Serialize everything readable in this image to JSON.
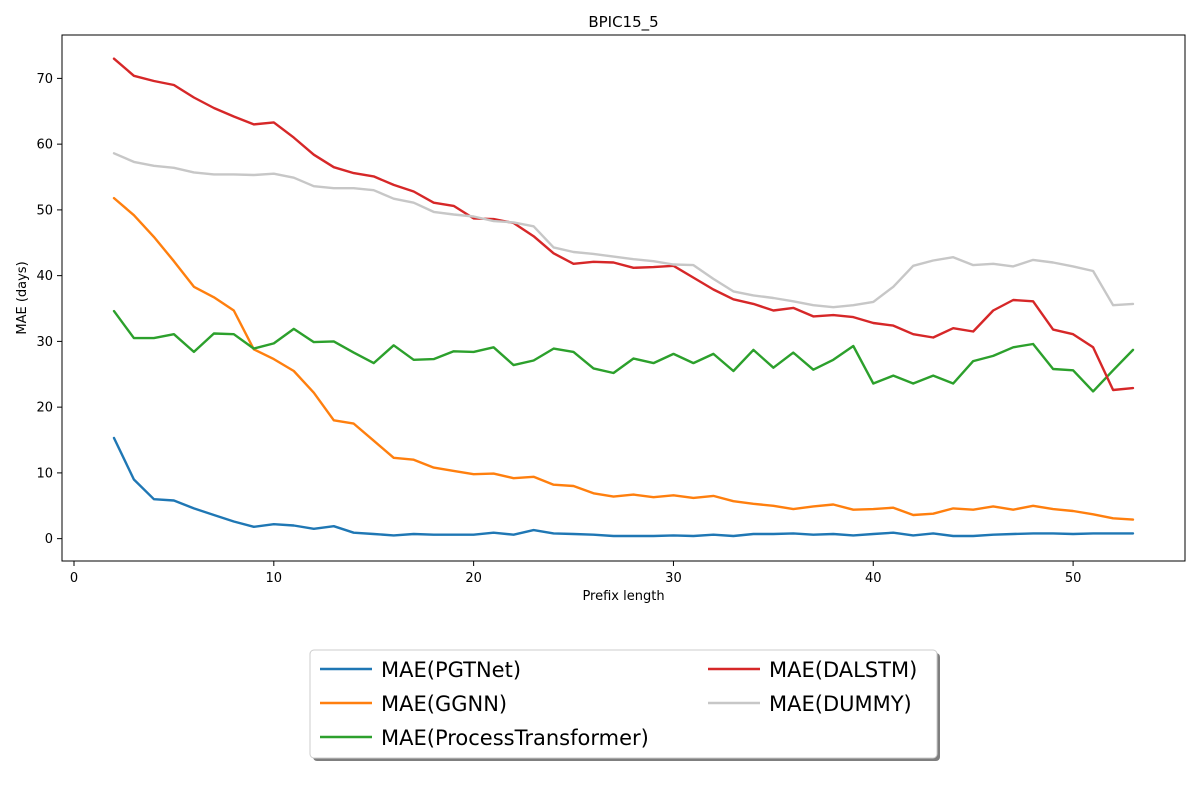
{
  "chart_data": {
    "type": "line",
    "title": "BPIC15_5",
    "xlabel": "Prefix length",
    "ylabel": "MAE (days)",
    "xlim": [
      -0.6,
      55.6
    ],
    "ylim": [
      -3.4,
      76.6
    ],
    "xticks": [
      0,
      10,
      20,
      30,
      40,
      50
    ],
    "yticks": [
      0,
      10,
      20,
      30,
      40,
      50,
      60,
      70
    ],
    "grid": false,
    "legend_position": "bottom-center",
    "x": [
      2,
      3,
      4,
      5,
      6,
      7,
      8,
      9,
      10,
      11,
      12,
      13,
      14,
      15,
      16,
      17,
      18,
      19,
      20,
      21,
      22,
      23,
      24,
      25,
      26,
      27,
      28,
      29,
      30,
      31,
      32,
      33,
      34,
      35,
      36,
      37,
      38,
      39,
      40,
      41,
      42,
      43,
      44,
      45,
      46,
      47,
      48,
      49,
      50,
      51,
      52,
      53
    ],
    "series": [
      {
        "name": "MAE(PGTNet)",
        "color": "#1f77b4",
        "values": [
          15.3,
          9.0,
          6.0,
          5.8,
          4.6,
          3.6,
          2.6,
          1.8,
          2.2,
          2.0,
          1.5,
          1.9,
          0.9,
          0.7,
          0.5,
          0.7,
          0.6,
          0.6,
          0.6,
          0.9,
          0.6,
          1.3,
          0.8,
          0.7,
          0.6,
          0.4,
          0.4,
          0.4,
          0.5,
          0.4,
          0.6,
          0.4,
          0.7,
          0.7,
          0.8,
          0.6,
          0.7,
          0.5,
          0.7,
          0.9,
          0.5,
          0.8,
          0.4,
          0.4,
          0.6,
          0.7,
          0.8,
          0.8,
          0.7,
          0.8,
          0.8,
          0.8
        ]
      },
      {
        "name": "MAE(GGNN)",
        "color": "#ff7f0e",
        "values": [
          51.8,
          49.2,
          45.9,
          42.2,
          38.3,
          36.7,
          34.7,
          28.8,
          27.3,
          25.5,
          22.2,
          18.0,
          17.5,
          14.9,
          12.3,
          12.0,
          10.8,
          10.3,
          9.8,
          9.9,
          9.2,
          9.4,
          8.2,
          8.0,
          6.9,
          6.4,
          6.7,
          6.3,
          6.6,
          6.2,
          6.5,
          5.7,
          5.3,
          5.0,
          4.5,
          4.9,
          5.2,
          4.4,
          4.5,
          4.7,
          3.6,
          3.8,
          4.6,
          4.4,
          4.9,
          4.4,
          5.0,
          4.5,
          4.2,
          3.7,
          3.1,
          2.9
        ]
      },
      {
        "name": "MAE(ProcessTransformer)",
        "color": "#2ca02c",
        "values": [
          34.6,
          30.5,
          30.5,
          31.1,
          28.4,
          31.2,
          31.1,
          28.9,
          29.7,
          31.9,
          29.9,
          30.0,
          28.3,
          26.7,
          29.4,
          27.2,
          27.3,
          28.5,
          28.4,
          29.1,
          26.4,
          27.1,
          28.9,
          28.4,
          25.9,
          25.2,
          27.4,
          26.7,
          28.1,
          26.7,
          28.1,
          25.5,
          28.7,
          26.0,
          28.3,
          25.7,
          27.2,
          29.3,
          23.6,
          24.8,
          23.6,
          24.8,
          23.6,
          27.0,
          27.8,
          29.1,
          29.6,
          25.8,
          25.6,
          22.4,
          25.6,
          28.7
        ]
      },
      {
        "name": "MAE(DALSTM)",
        "color": "#d62728",
        "values": [
          73.0,
          70.4,
          69.6,
          69.0,
          67.1,
          65.5,
          64.2,
          63.0,
          63.3,
          61.0,
          58.4,
          56.5,
          55.6,
          55.1,
          53.8,
          52.8,
          51.1,
          50.6,
          48.7,
          48.6,
          48.0,
          46.0,
          43.4,
          41.8,
          42.1,
          42.0,
          41.2,
          41.3,
          41.5,
          39.7,
          37.9,
          36.4,
          35.7,
          34.7,
          35.1,
          33.8,
          34.0,
          33.7,
          32.8,
          32.4,
          31.1,
          30.6,
          32.0,
          31.5,
          34.7,
          36.3,
          36.1,
          31.8,
          31.1,
          29.1,
          22.6,
          22.9
        ]
      },
      {
        "name": "MAE(DUMMY)",
        "color": "#c7c7c7",
        "values": [
          58.6,
          57.3,
          56.7,
          56.4,
          55.7,
          55.4,
          55.4,
          55.3,
          55.5,
          54.9,
          53.6,
          53.3,
          53.3,
          53.0,
          51.7,
          51.1,
          49.7,
          49.3,
          49.0,
          48.3,
          48.1,
          47.5,
          44.3,
          43.6,
          43.3,
          42.9,
          42.5,
          42.2,
          41.7,
          41.6,
          39.5,
          37.6,
          37.0,
          36.6,
          36.1,
          35.5,
          35.2,
          35.5,
          36.0,
          38.3,
          41.5,
          42.3,
          42.8,
          41.6,
          41.8,
          41.4,
          42.4,
          42.0,
          41.4,
          40.7,
          35.5,
          35.7
        ]
      }
    ]
  }
}
